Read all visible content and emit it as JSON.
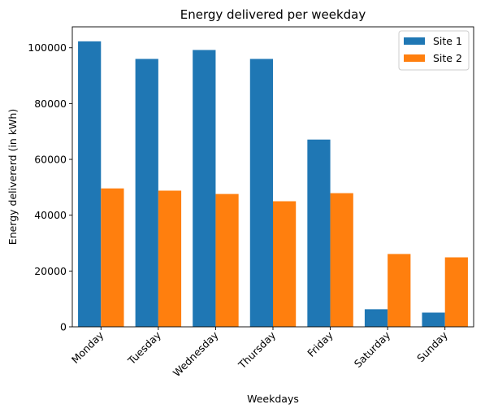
{
  "chart_data": {
    "type": "bar",
    "title": "Energy delivered per weekday",
    "xlabel": "Weekdays",
    "ylabel": "Energy delivererd (in kWh)",
    "categories": [
      "Monday",
      "Tuesday",
      "Wednesday",
      "Thursday",
      "Friday",
      "Saturday",
      "Sunday"
    ],
    "series": [
      {
        "name": "Site 1",
        "color": "#1f77b4",
        "values": [
          102300,
          96000,
          99200,
          96000,
          67100,
          6300,
          5100
        ]
      },
      {
        "name": "Site 2",
        "color": "#ff7f0e",
        "values": [
          49600,
          48800,
          47600,
          45000,
          47900,
          26100,
          24900
        ]
      }
    ],
    "ylim": [
      0,
      107500
    ],
    "yticks": [
      0,
      20000,
      40000,
      60000,
      80000,
      100000
    ],
    "ytick_labels": [
      "0",
      "20000",
      "40000",
      "60000",
      "80000",
      "100000"
    ],
    "x_tick_rotation_deg": 45,
    "legend_position": "top-right",
    "grid": false
  }
}
